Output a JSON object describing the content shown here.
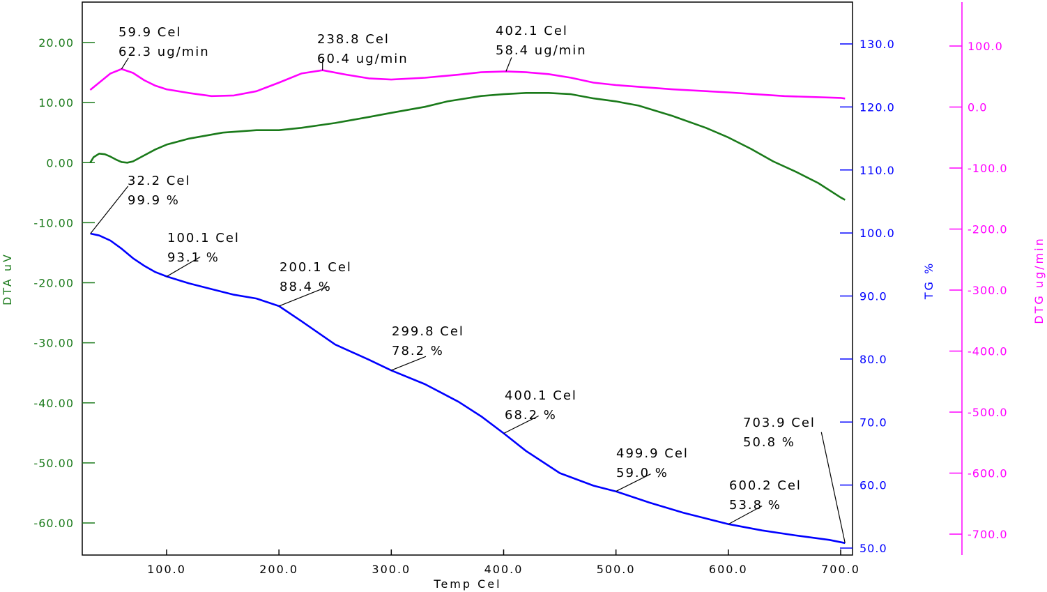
{
  "chart_data": {
    "type": "line",
    "x_axis": {
      "label": "Temp Cel",
      "range": [
        30,
        710
      ],
      "ticks": [
        100,
        200,
        300,
        400,
        500,
        600,
        700
      ],
      "tick_labels": [
        "100.0",
        "200.0",
        "300.0",
        "400.0",
        "500.0",
        "600.0",
        "700.0"
      ]
    },
    "y_axes": {
      "dta": {
        "label": "DTA uV",
        "color": "#1a7a1a",
        "range": [
          -65,
          26.5
        ],
        "ticks": [
          20,
          10,
          0,
          -10,
          -20,
          -30,
          -40,
          -50,
          -60
        ],
        "tick_labels": [
          "20.00",
          "10.00",
          "0.00",
          "-10.00",
          "-20.00",
          "-30.00",
          "-40.00",
          "-50.00",
          "-60.00"
        ]
      },
      "tg": {
        "label": "TG %",
        "color": "#0000ff",
        "range": [
          49,
          137
        ],
        "ticks": [
          130,
          120,
          110,
          100,
          90,
          80,
          70,
          60,
          50
        ],
        "tick_labels": [
          "130.0",
          "120.0",
          "110.0",
          "100.0",
          "90.0",
          "80.0",
          "70.0",
          "60.0",
          "50.0"
        ]
      },
      "dtg": {
        "label": "DTG ug/min",
        "color": "#ff00ff",
        "range": [
          -750,
          170
        ],
        "ticks": [
          100,
          0,
          -100,
          -200,
          -300,
          -400,
          -500,
          -600,
          -700
        ],
        "tick_labels": [
          "100.0",
          "0.0",
          "-100.0",
          "-200.0",
          "-300.0",
          "-400.0",
          "-500.0",
          "-600.0",
          "-700.0"
        ]
      }
    },
    "series": [
      {
        "name": "DTA",
        "axis": "dta",
        "color": "#1a7a1a",
        "x": [
          32,
          35,
          40,
          45,
          50,
          55,
          60,
          65,
          70,
          80,
          90,
          100,
          120,
          150,
          180,
          200,
          220,
          250,
          280,
          300,
          330,
          350,
          380,
          400,
          420,
          440,
          460,
          480,
          500,
          520,
          550,
          580,
          600,
          620,
          640,
          660,
          680,
          700,
          703.9
        ],
        "y": [
          0,
          0.9,
          1.5,
          1.4,
          1.0,
          0.5,
          0.1,
          0.0,
          0.2,
          1.2,
          2.2,
          3.0,
          4.0,
          5.0,
          5.4,
          5.4,
          5.8,
          6.6,
          7.6,
          8.3,
          9.3,
          10.2,
          11.1,
          11.4,
          11.6,
          11.6,
          11.4,
          10.7,
          10.2,
          9.5,
          7.8,
          5.8,
          4.2,
          2.3,
          0.2,
          -1.5,
          -3.4,
          -5.8,
          -6.2
        ]
      },
      {
        "name": "TG",
        "axis": "tg",
        "color": "#0000ff",
        "x": [
          32.2,
          40,
          50,
          60,
          70,
          80,
          90,
          100.1,
          120,
          140,
          160,
          180,
          200.1,
          220,
          250,
          280,
          299.8,
          330,
          360,
          380,
          400.1,
          420,
          450,
          480,
          499.9,
          530,
          560,
          580,
          600.2,
          630,
          660,
          690,
          703.9
        ],
        "y": [
          99.9,
          99.6,
          98.8,
          97.5,
          96.0,
          94.8,
          93.8,
          93.1,
          92.0,
          91.1,
          90.2,
          89.6,
          88.4,
          86.0,
          82.3,
          79.9,
          78.2,
          76.0,
          73.2,
          70.9,
          68.2,
          65.4,
          61.9,
          59.9,
          59.0,
          57.2,
          55.6,
          54.7,
          53.8,
          52.8,
          52.0,
          51.3,
          50.8
        ]
      },
      {
        "name": "DTG",
        "axis": "dtg",
        "color": "#ff00ff",
        "x": [
          32,
          40,
          50,
          59.9,
          70,
          80,
          90,
          100,
          120,
          140,
          160,
          180,
          200,
          220,
          238.8,
          260,
          280,
          300,
          330,
          360,
          380,
          402.1,
          420,
          440,
          460,
          480,
          500,
          550,
          600,
          650,
          700,
          703.9
        ],
        "y": [
          28,
          40,
          55,
          62.3,
          56,
          44,
          35,
          29,
          23,
          18,
          19,
          26,
          40,
          55,
          60.4,
          53,
          47,
          45,
          48,
          53,
          57,
          58.4,
          57,
          54,
          48,
          40,
          36,
          29,
          24,
          18,
          15,
          14
        ]
      }
    ],
    "annotations": [
      {
        "series": "DTG",
        "x": 59.9,
        "y": 62.3,
        "line1": "59.9 Cel",
        "line2": "62.3 ug/min"
      },
      {
        "series": "DTG",
        "x": 238.8,
        "y": 60.4,
        "line1": "238.8 Cel",
        "line2": "60.4 ug/min"
      },
      {
        "series": "DTG",
        "x": 402.1,
        "y": 58.4,
        "line1": "402.1 Cel",
        "line2": "58.4 ug/min"
      },
      {
        "series": "TG",
        "x": 32.2,
        "y": 99.9,
        "line1": "32.2 Cel",
        "line2": "99.9 %"
      },
      {
        "series": "TG",
        "x": 100.1,
        "y": 93.1,
        "line1": "100.1 Cel",
        "line2": "93.1 %"
      },
      {
        "series": "TG",
        "x": 200.1,
        "y": 88.4,
        "line1": "200.1 Cel",
        "line2": "88.4 %"
      },
      {
        "series": "TG",
        "x": 299.8,
        "y": 78.2,
        "line1": "299.8 Cel",
        "line2": "78.2 %"
      },
      {
        "series": "TG",
        "x": 400.1,
        "y": 68.2,
        "line1": "400.1 Cel",
        "line2": "68.2 %"
      },
      {
        "series": "TG",
        "x": 499.9,
        "y": 59.0,
        "line1": "499.9 Cel",
        "line2": "59.0 %"
      },
      {
        "series": "TG",
        "x": 600.2,
        "y": 53.8,
        "line1": "600.2 Cel",
        "line2": "53.8 %"
      },
      {
        "series": "TG",
        "x": 703.9,
        "y": 50.8,
        "line1": "703.9 Cel",
        "line2": "50.8 %"
      }
    ],
    "grid": false,
    "legend": "none"
  }
}
